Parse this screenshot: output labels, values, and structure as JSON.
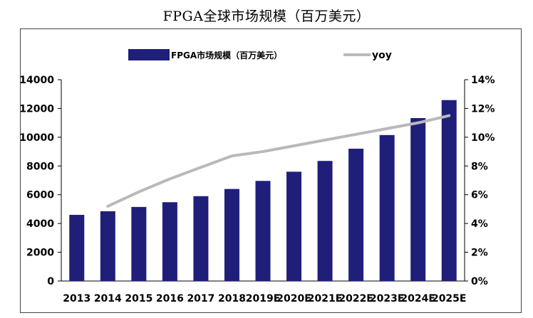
{
  "page": {
    "title": "FPGA全球市场规模（百万美元）"
  },
  "colors": {
    "bar": "#1f1f7a",
    "line": "#b9b9b9",
    "axis": "#000000",
    "frame": "#444444"
  },
  "chart_data": {
    "type": "bar",
    "title": "FPGA全球市场规模（百万美元）",
    "categories": [
      "2013",
      "2014",
      "2015",
      "2016",
      "2017",
      "2018",
      "2019E",
      "2020E",
      "2021E",
      "2022E",
      "2023E",
      "2024E",
      "2025E"
    ],
    "series": [
      {
        "name": "FPGA市场规模（百万美元）",
        "type": "bar",
        "axis": "left",
        "values": [
          4600,
          4850,
          5150,
          5480,
          5900,
          6400,
          6960,
          7600,
          8350,
          9200,
          10150,
          11330,
          12580
        ]
      },
      {
        "name": "yoy",
        "type": "line",
        "axis": "right",
        "values": [
          null,
          5.2,
          6.2,
          7.1,
          7.9,
          8.7,
          9.0,
          9.4,
          9.8,
          10.2,
          10.6,
          11.0,
          11.5
        ]
      }
    ],
    "y_left": {
      "ticks": [
        "0",
        "2000",
        "4000",
        "6000",
        "8000",
        "10000",
        "12000",
        "14000"
      ],
      "ylim": [
        0,
        14000
      ]
    },
    "y_right": {
      "ticks": [
        "0%",
        "2%",
        "4%",
        "6%",
        "8%",
        "10%",
        "12%",
        "14%"
      ],
      "ylim": [
        0,
        14
      ]
    },
    "legend": {
      "position": "top",
      "bar_label": "FPGA市场规模（百万美元）",
      "line_label": "yoy"
    },
    "grid": false
  }
}
